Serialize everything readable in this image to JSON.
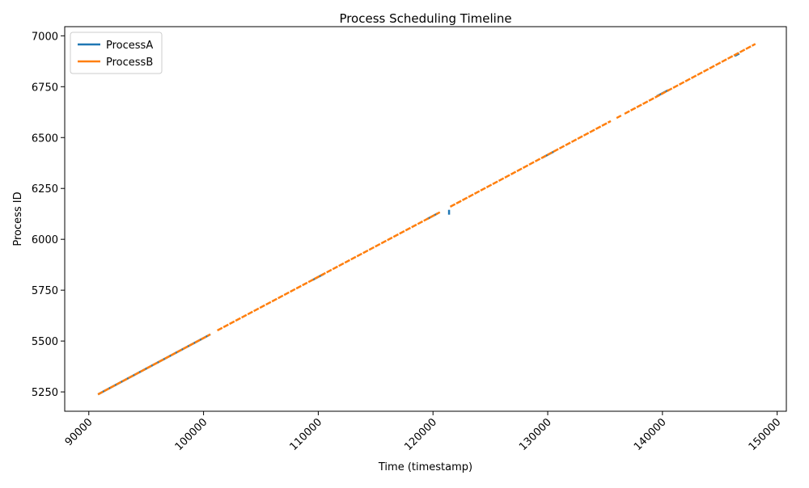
{
  "chart_data": {
    "type": "line",
    "title": "Process Scheduling Timeline",
    "xlabel": "Time (timestamp)",
    "ylabel": "Process ID",
    "xlim": [
      87900,
      150800
    ],
    "ylim": [
      5155,
      7045
    ],
    "x_ticks": [
      90000,
      100000,
      110000,
      120000,
      130000,
      140000,
      150000
    ],
    "x_tick_labels": [
      "90000",
      "100000",
      "110000",
      "120000",
      "130000",
      "140000",
      "150000"
    ],
    "x_tick_rotation": 45,
    "y_ticks": [
      5250,
      5500,
      5750,
      6000,
      6250,
      6500,
      6750,
      7000
    ],
    "y_tick_labels": [
      "5250",
      "5500",
      "5750",
      "6000",
      "6250",
      "6500",
      "6750",
      "7000"
    ],
    "grid": false,
    "legend_position": "top-left",
    "series": [
      {
        "name": "ProcessA",
        "color": "#1f77b4",
        "segments": [
          [
            [
              90800,
              5238
            ],
            [
              100600,
              5533
            ]
          ],
          [
            [
              109500,
              5800
            ],
            [
              110500,
              5830
            ]
          ],
          [
            [
              119500,
              6100
            ],
            [
              120400,
              6127
            ]
          ],
          [
            [
              129500,
              6400
            ],
            [
              130500,
              6430
            ]
          ],
          [
            [
              139500,
              6703
            ],
            [
              140500,
              6733
            ]
          ],
          [
            [
              146300,
              6901
            ],
            [
              146700,
              6913
            ]
          ]
        ],
        "marks": [
          [
            121400,
            6133
          ]
        ]
      },
      {
        "name": "ProcessB",
        "color": "#ff7f0e",
        "segments": [
          [
            [
              90800,
              5238
            ],
            [
              100600,
              5533
            ]
          ],
          [
            [
              101200,
              5552
            ],
            [
              120600,
              6133
            ]
          ],
          [
            [
              121500,
              6160
            ],
            [
              135500,
              6581
            ]
          ],
          [
            [
              136000,
              6596
            ],
            [
              136400,
              6608
            ]
          ],
          [
            [
              136700,
              6617
            ],
            [
              148100,
              6960
            ]
          ]
        ],
        "marks": []
      }
    ]
  }
}
